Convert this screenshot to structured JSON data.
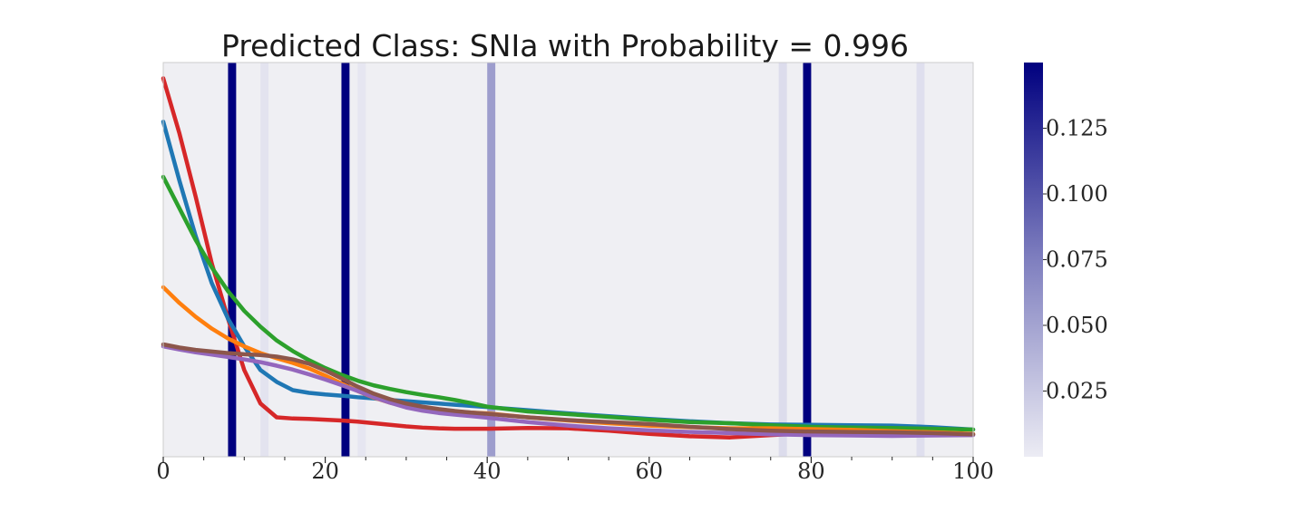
{
  "chart_data": {
    "type": "line",
    "title": "Predicted Class: SNIa with Probability = 0.996",
    "xlabel": "",
    "ylabel": "",
    "xlim": [
      0,
      100
    ],
    "ylim": [
      0,
      1
    ],
    "x_ticks": [
      {
        "value": 0,
        "label": "0"
      },
      {
        "value": 20,
        "label": "20"
      },
      {
        "value": 40,
        "label": "40"
      },
      {
        "value": 60,
        "label": "60"
      },
      {
        "value": 80,
        "label": "80"
      },
      {
        "value": 100,
        "label": "100"
      }
    ],
    "x_minor_ticks": [
      5,
      10,
      15,
      25,
      30,
      35,
      45,
      50,
      55,
      65,
      70,
      75,
      85,
      90,
      95
    ],
    "grid": false,
    "background_color": "#efeff3",
    "attention": {
      "description_colormap": "white-to-navy",
      "cmap_low": "#ececf4",
      "cmap_high": "#00007f",
      "range": [
        0,
        0.15
      ],
      "bands": [
        {
          "start": 8,
          "end": 9,
          "weight": 0.15
        },
        {
          "start": 12,
          "end": 13,
          "weight": 0.006
        },
        {
          "start": 22,
          "end": 23,
          "weight": 0.15
        },
        {
          "start": 24,
          "end": 25,
          "weight": 0.004
        },
        {
          "start": 40,
          "end": 41,
          "weight": 0.05
        },
        {
          "start": 76,
          "end": 77,
          "weight": 0.01
        },
        {
          "start": 79,
          "end": 80,
          "weight": 0.15
        },
        {
          "start": 93,
          "end": 94,
          "weight": 0.008
        }
      ]
    },
    "colorbar": {
      "ticks": [
        {
          "value": 0.025,
          "label": "0.025"
        },
        {
          "value": 0.05,
          "label": "0.050"
        },
        {
          "value": 0.075,
          "label": "0.075"
        },
        {
          "value": 0.1,
          "label": "0.100"
        },
        {
          "value": 0.125,
          "label": "0.125"
        }
      ]
    },
    "x": [
      0,
      2,
      4,
      6,
      8,
      10,
      12,
      14,
      16,
      18,
      20,
      22,
      24,
      26,
      28,
      30,
      32,
      34,
      36,
      38,
      40,
      45,
      50,
      55,
      60,
      65,
      70,
      75,
      80,
      85,
      90,
      95,
      100
    ],
    "series": [
      {
        "name": "red",
        "color": "#d62728",
        "values": [
          0.96,
          0.82,
          0.66,
          0.49,
          0.35,
          0.22,
          0.135,
          0.1,
          0.097,
          0.096,
          0.094,
          0.092,
          0.089,
          0.085,
          0.081,
          0.077,
          0.074,
          0.072,
          0.071,
          0.071,
          0.071,
          0.073,
          0.072,
          0.066,
          0.058,
          0.052,
          0.049,
          0.055,
          0.06,
          0.057,
          0.055,
          0.056,
          0.056
        ]
      },
      {
        "name": "blue",
        "color": "#1f77b4",
        "values": [
          0.85,
          0.7,
          0.56,
          0.44,
          0.35,
          0.28,
          0.22,
          0.19,
          0.169,
          0.162,
          0.158,
          0.155,
          0.151,
          0.148,
          0.144,
          0.141,
          0.138,
          0.135,
          0.132,
          0.129,
          0.126,
          0.118,
          0.11,
          0.103,
          0.096,
          0.09,
          0.085,
          0.082,
          0.081,
          0.08,
          0.079,
          0.075,
          0.069
        ]
      },
      {
        "name": "green",
        "color": "#2ca02c",
        "values": [
          0.71,
          0.63,
          0.55,
          0.48,
          0.42,
          0.37,
          0.33,
          0.295,
          0.268,
          0.245,
          0.225,
          0.208,
          0.193,
          0.181,
          0.172,
          0.164,
          0.157,
          0.151,
          0.144,
          0.136,
          0.127,
          0.115,
          0.108,
          0.101,
          0.094,
          0.088,
          0.085,
          0.08,
          0.076,
          0.074,
          0.073,
          0.071,
          0.069
        ]
      },
      {
        "name": "orange",
        "color": "#ff7f0e",
        "values": [
          0.43,
          0.39,
          0.355,
          0.325,
          0.3,
          0.28,
          0.263,
          0.25,
          0.238,
          0.224,
          0.206,
          0.186,
          0.167,
          0.15,
          0.137,
          0.128,
          0.122,
          0.118,
          0.115,
          0.112,
          0.11,
          0.1,
          0.092,
          0.085,
          0.079,
          0.075,
          0.072,
          0.072,
          0.07,
          0.068,
          0.065,
          0.062,
          0.058
        ]
      },
      {
        "name": "purple",
        "color": "#9467bd",
        "values": [
          0.28,
          0.272,
          0.265,
          0.259,
          0.253,
          0.247,
          0.24,
          0.231,
          0.221,
          0.209,
          0.196,
          0.182,
          0.167,
          0.151,
          0.137,
          0.125,
          0.117,
          0.111,
          0.107,
          0.103,
          0.099,
          0.088,
          0.079,
          0.072,
          0.067,
          0.063,
          0.06,
          0.057,
          0.055,
          0.054,
          0.053,
          0.054,
          0.055
        ]
      },
      {
        "name": "brown",
        "color": "#8c564b",
        "values": [
          0.285,
          0.277,
          0.271,
          0.267,
          0.263,
          0.26,
          0.258,
          0.254,
          0.247,
          0.236,
          0.219,
          0.199,
          0.178,
          0.16,
          0.146,
          0.135,
          0.127,
          0.121,
          0.116,
          0.112,
          0.109,
          0.1,
          0.093,
          0.088,
          0.083,
          0.076,
          0.07,
          0.066,
          0.064,
          0.063,
          0.062,
          0.06,
          0.057
        ]
      }
    ]
  }
}
